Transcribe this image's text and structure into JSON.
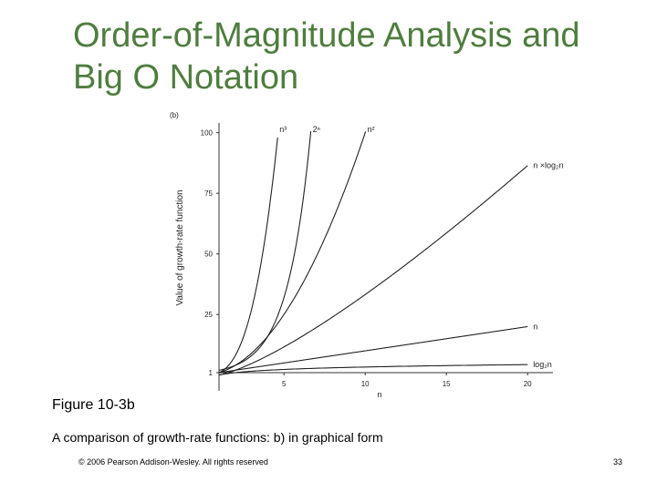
{
  "slide": {
    "title_line1": "Order-of-Magnitude Analysis and",
    "title_line2": "Big O Notation",
    "figure_title": "Figure 10-3b",
    "caption": "A comparison of growth-rate functions: b) in graphical form",
    "copyright": "© 2006 Pearson Addison-Wesley. All rights reserved",
    "page_number": "33"
  },
  "colors": {
    "title": "#4f7d3f",
    "curves": "#222222",
    "axes": "#333333"
  },
  "chart_data": {
    "type": "line",
    "panel_label": "(b)",
    "ylabel": "Value of growth-rate function",
    "xlabel": "n",
    "xlim": [
      1,
      21
    ],
    "ylim": [
      1,
      101
    ],
    "x_ticks": [
      5,
      10,
      15,
      20
    ],
    "y_ticks": [
      1,
      25,
      50,
      75,
      100
    ],
    "grid": false,
    "series": [
      {
        "name": "2ⁿ",
        "func": "pow2",
        "label": "2ⁿ"
      },
      {
        "name": "n³",
        "func": "cube",
        "label": "n³"
      },
      {
        "name": "n²",
        "func": "square",
        "label": "n²"
      },
      {
        "name": "n × log₂n",
        "func": "nlogn",
        "label": "n ×log₂n"
      },
      {
        "name": "n",
        "func": "linear",
        "label": "n"
      },
      {
        "name": "log₂n",
        "func": "log2",
        "label": "log₂n"
      }
    ]
  }
}
